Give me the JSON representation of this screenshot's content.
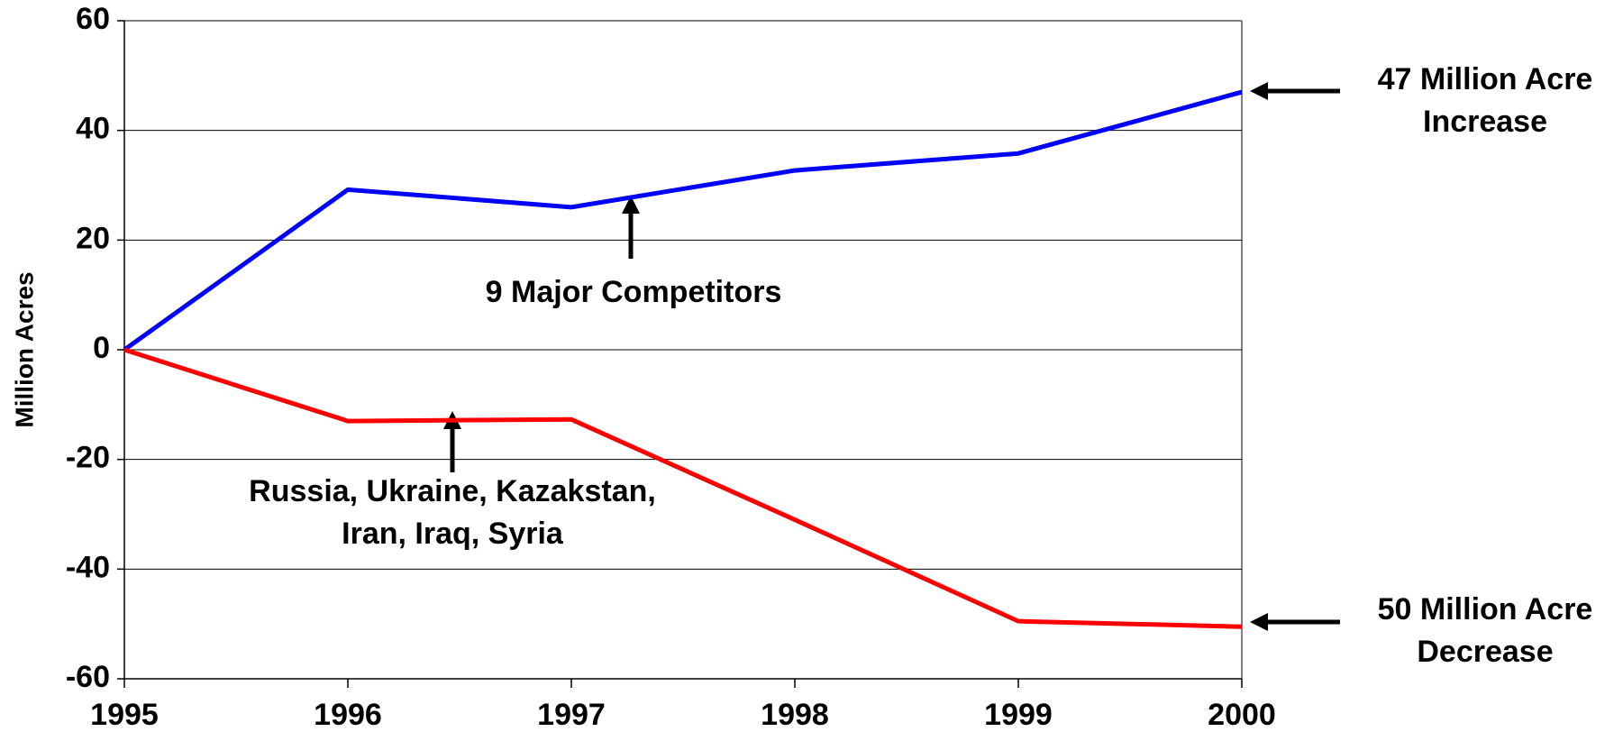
{
  "chart_data": {
    "type": "line",
    "ylabel": "Million Acres",
    "x": [
      1995,
      1996,
      1997,
      1998,
      1999,
      2000
    ],
    "xlim": [
      1995,
      2000
    ],
    "xticks": [
      1995,
      1996,
      1997,
      1998,
      1999,
      2000
    ],
    "ylim": [
      -60,
      60
    ],
    "yticks": [
      -60,
      -40,
      -20,
      0,
      20,
      40,
      60
    ],
    "grid": true,
    "series": [
      {
        "color": "#0000ff",
        "values": [
          0,
          29.2,
          26,
          32.7,
          35.8,
          47
        ]
      },
      {
        "color": "#ff0000",
        "values": [
          0,
          -13,
          -12.7,
          -31,
          -49.5,
          -50.5
        ]
      }
    ],
    "annotations": [
      [
        "9 Major Competitors"
      ],
      [
        "Russia, Ukraine, Kazakstan,",
        "Iran, Iraq, Syria"
      ],
      [
        "47 Million Acre",
        "Increase"
      ],
      [
        "50 Million Acre",
        "Decrease"
      ]
    ]
  }
}
